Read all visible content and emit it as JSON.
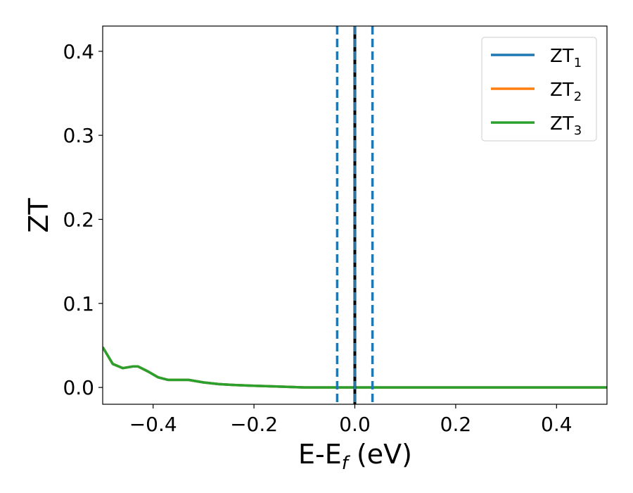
{
  "chart_data": {
    "type": "line",
    "xlabel": {
      "main": "E-E",
      "sub": "f",
      "unit": " (eV)"
    },
    "ylabel": "ZT",
    "xlim": [
      -0.5,
      0.5
    ],
    "ylim": [
      -0.02,
      0.43
    ],
    "x_ticks": [
      -0.4,
      -0.2,
      0.0,
      0.2,
      0.4
    ],
    "x_tick_labels": [
      "−0.4",
      "−0.2",
      "0.0",
      "0.2",
      "0.4"
    ],
    "y_ticks": [
      0.0,
      0.1,
      0.2,
      0.3,
      0.4
    ],
    "y_tick_labels": [
      "0.0",
      "0.1",
      "0.2",
      "0.3",
      "0.4"
    ],
    "grid": false,
    "legend_position": "top-right",
    "series": [
      {
        "name": "ZT",
        "sub": "1",
        "color": "#1f77b4",
        "x": [
          -0.5,
          -0.48,
          -0.46,
          -0.44,
          -0.43,
          -0.41,
          -0.39,
          -0.37,
          -0.35,
          -0.33,
          -0.3,
          -0.27,
          -0.24,
          -0.2,
          -0.15,
          -0.1,
          -0.05,
          0.0,
          0.05,
          0.1,
          0.15,
          0.2,
          0.25,
          0.3,
          0.35,
          0.4,
          0.45,
          0.5
        ],
        "y": [
          0.048,
          0.028,
          0.023,
          0.025,
          0.025,
          0.019,
          0.012,
          0.009,
          0.009,
          0.009,
          0.006,
          0.004,
          0.003,
          0.002,
          0.001,
          0.0,
          0.0,
          0.0,
          0.0,
          0.0,
          0.0,
          0.0,
          0.0,
          0.0,
          0.0,
          0.0,
          0.0,
          0.0
        ]
      },
      {
        "name": "ZT",
        "sub": "2",
        "color": "#ff7f0e",
        "x": [
          -0.5,
          -0.48,
          -0.46,
          -0.44,
          -0.43,
          -0.41,
          -0.39,
          -0.37,
          -0.35,
          -0.33,
          -0.3,
          -0.27,
          -0.24,
          -0.2,
          -0.15,
          -0.1,
          -0.05,
          0.0,
          0.05,
          0.1,
          0.15,
          0.2,
          0.25,
          0.3,
          0.35,
          0.4,
          0.45,
          0.5
        ],
        "y": [
          0.048,
          0.028,
          0.023,
          0.025,
          0.025,
          0.019,
          0.012,
          0.009,
          0.009,
          0.009,
          0.006,
          0.004,
          0.003,
          0.002,
          0.001,
          0.0,
          0.0,
          0.0,
          0.0,
          0.0,
          0.0,
          0.0,
          0.0,
          0.0,
          0.0,
          0.0,
          0.0,
          0.0
        ]
      },
      {
        "name": "ZT",
        "sub": "3",
        "color": "#2ca02c",
        "x": [
          -0.5,
          -0.48,
          -0.46,
          -0.44,
          -0.43,
          -0.41,
          -0.39,
          -0.37,
          -0.35,
          -0.33,
          -0.3,
          -0.27,
          -0.24,
          -0.2,
          -0.15,
          -0.1,
          -0.05,
          0.0,
          0.05,
          0.1,
          0.15,
          0.2,
          0.25,
          0.3,
          0.35,
          0.4,
          0.45,
          0.5
        ],
        "y": [
          0.048,
          0.028,
          0.023,
          0.025,
          0.025,
          0.019,
          0.012,
          0.009,
          0.009,
          0.009,
          0.006,
          0.004,
          0.003,
          0.002,
          0.001,
          0.0,
          0.0,
          0.0,
          0.0,
          0.0,
          0.0,
          0.0,
          0.0,
          0.0,
          0.0,
          0.0,
          0.0,
          0.0
        ]
      }
    ],
    "vlines": [
      {
        "x": 0.0,
        "style": "solid",
        "color": "#000000"
      },
      {
        "x": 0.0,
        "style": "dashed",
        "color": "#1f77b4"
      },
      {
        "x": -0.035,
        "style": "dashed",
        "color": "#1f77b4"
      },
      {
        "x": 0.035,
        "style": "dashed",
        "color": "#1f77b4"
      }
    ]
  }
}
